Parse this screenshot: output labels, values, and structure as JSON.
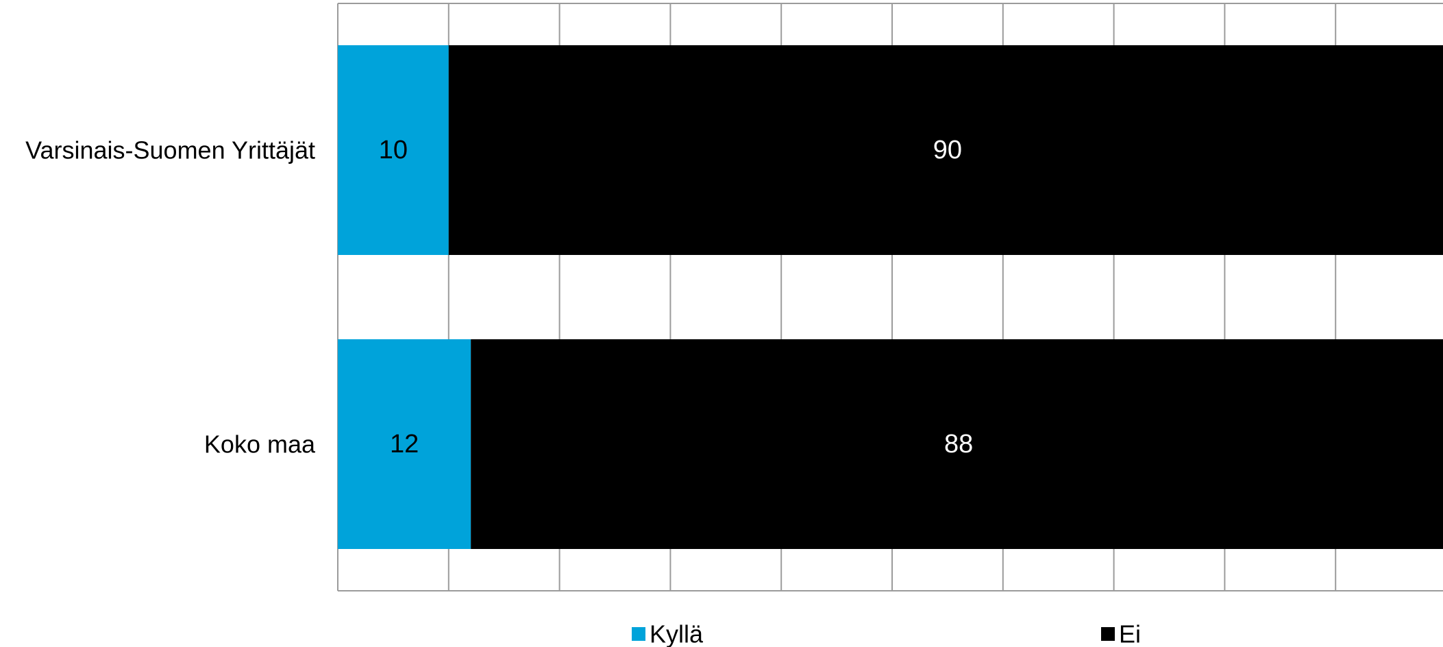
{
  "chart_data": {
    "type": "bar",
    "orientation": "horizontal",
    "stacked": true,
    "categories": [
      "Varsinais-Suomen Yrittäjät",
      "Koko maa"
    ],
    "series": [
      {
        "name": "Kyllä",
        "values": [
          10,
          12
        ],
        "color": "#00A3DA",
        "label_color": "#000000"
      },
      {
        "name": "Ei",
        "values": [
          90,
          88
        ],
        "color": "#000000",
        "label_color": "#FFFFFF"
      }
    ],
    "xlim": [
      0,
      100
    ],
    "grid": true,
    "legend": "bottom",
    "title": "",
    "xlabel": "",
    "ylabel": ""
  }
}
